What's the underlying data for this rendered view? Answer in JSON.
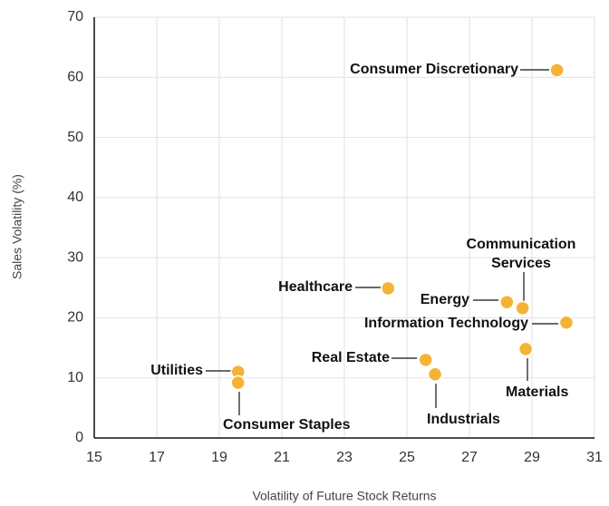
{
  "chart_data": {
    "type": "scatter",
    "x_label": "Volatility of Future Stock Returns",
    "y_label": "Sales Volatility  (%)",
    "xlim": [
      15,
      31
    ],
    "xticks": [
      15,
      17,
      19,
      21,
      23,
      25,
      27,
      29,
      31
    ],
    "ylim": [
      0,
      70
    ],
    "yticks": [
      0,
      10,
      20,
      30,
      40,
      50,
      60,
      70
    ],
    "grid": true,
    "color": "#f5b335",
    "points": [
      {
        "label": "Consumer Discretionary",
        "x": 29.8,
        "y": 61.2
      },
      {
        "label": "Healthcare",
        "x": 24.4,
        "y": 24.9
      },
      {
        "label": "Energy",
        "x": 28.2,
        "y": 22.6
      },
      {
        "label": [
          "Communication",
          "Services"
        ],
        "x": 28.7,
        "y": 21.6
      },
      {
        "label": "Information Technology",
        "x": 30.1,
        "y": 19.2
      },
      {
        "label": "Materials",
        "x": 28.8,
        "y": 14.8
      },
      {
        "label": "Real Estate",
        "x": 25.6,
        "y": 13.0
      },
      {
        "label": "Industrials",
        "x": 25.9,
        "y": 10.6
      },
      {
        "label": "Utilities",
        "x": 19.6,
        "y": 11.0
      },
      {
        "label": "Consumer Staples",
        "x": 19.6,
        "y": 9.2
      }
    ]
  }
}
